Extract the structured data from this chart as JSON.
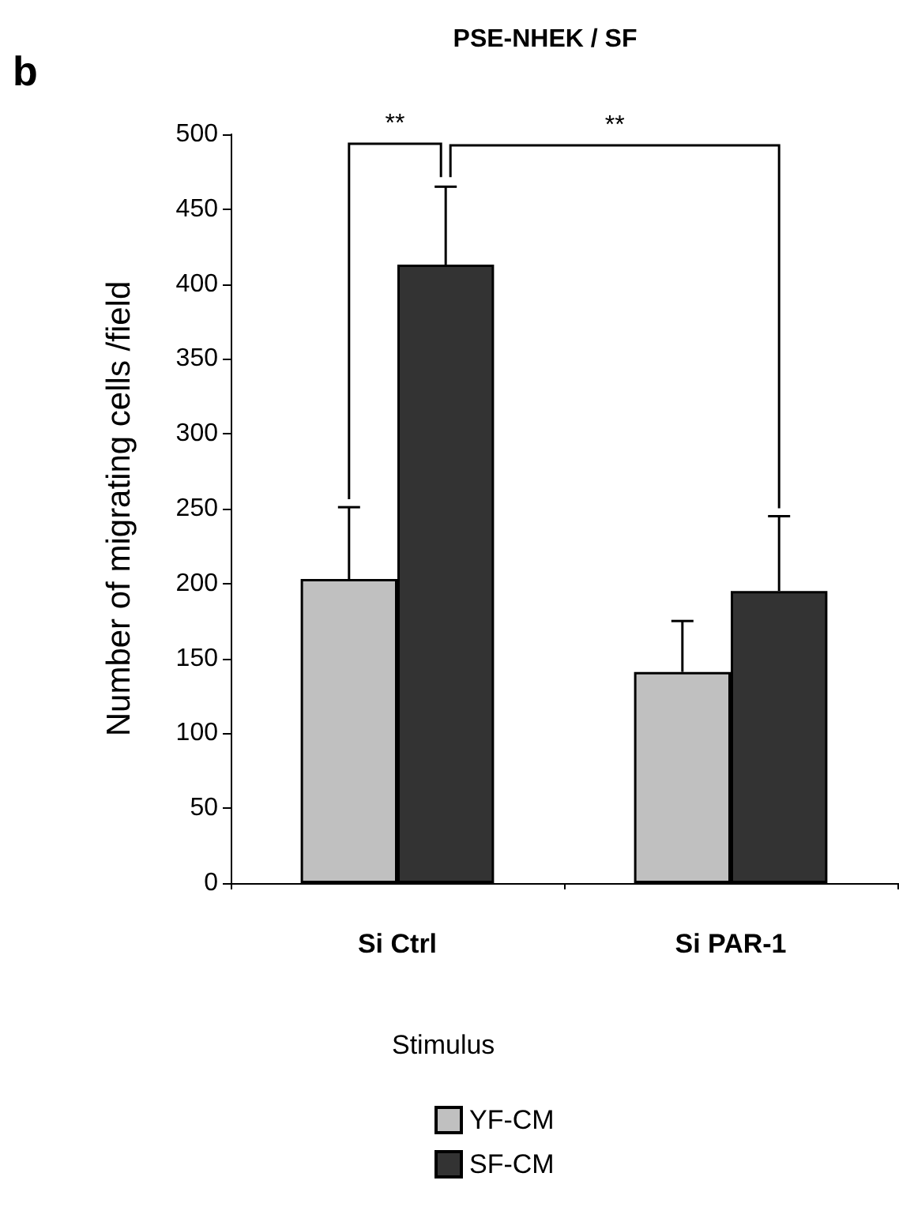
{
  "chart_data": {
    "type": "bar",
    "title": "PSE-NHEK / SF",
    "ylabel": "Number of migrating cells /field",
    "legend_title": "Stimulus",
    "categories": [
      "Si Ctrl",
      "Si PAR-1"
    ],
    "series": [
      {
        "name": "YF-CM",
        "color": "#c0c0c0",
        "values": [
          203,
          141
        ],
        "errors": [
          [
            203,
            251
          ],
          [
            141,
            175
          ]
        ]
      },
      {
        "name": "SF-CM",
        "color": "#333333",
        "values": [
          413,
          195
        ],
        "errors": [
          [
            413,
            465
          ],
          [
            195,
            245
          ]
        ]
      }
    ],
    "ylim": [
      0,
      500
    ],
    "yticks": [
      0,
      50,
      100,
      150,
      200,
      250,
      300,
      350,
      400,
      450,
      500
    ],
    "grid": false,
    "legend": "bottom",
    "annotations": [
      "b",
      "**",
      "**"
    ]
  }
}
